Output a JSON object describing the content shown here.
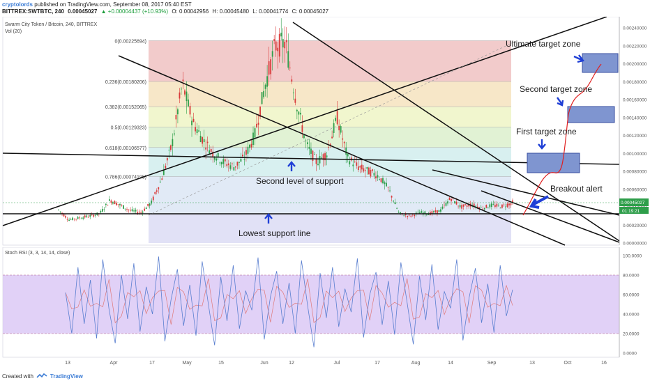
{
  "header": {
    "user": "cryptolords",
    "published": "published on TradingView.com, September 08, 2017 05:40 EST",
    "symbol": "BITTREX:SWTBTC, 240",
    "last": "0.00045027",
    "change": "▲ +0.00004437 (+10.93%)",
    "open": "O: 0.00042956",
    "high": "H: 0.00045480",
    "low": "L: 0.00041774",
    "close": "C: 0.00045027"
  },
  "pane_title": "Swarm City Token / Bitcoin, 240, BITTREX",
  "volume_label": "Vol (20)",
  "rsi_title": "Stoch RSI (3, 3, 14, 14, close)",
  "price_axis": [
    "0.00240000",
    "0.00220000",
    "0.00200000",
    "0.00180000",
    "0.00160000",
    "0.00140000",
    "0.00120000",
    "0.00100000",
    "0.00080000",
    "0.00060000",
    "0.00040000",
    "0.00020000",
    "0.00000000"
  ],
  "last_price_tag": "0.00045027",
  "countdown_tag": "01:19:21",
  "rsi_axis": [
    "100.0000",
    "80.0000",
    "60.0000",
    "40.0000",
    "20.0000",
    "0.0000"
  ],
  "time_axis": [
    "13",
    "Apr",
    "17",
    "May",
    "15",
    "Jun",
    "12",
    "Jul",
    "17",
    "Aug",
    "14",
    "Sep",
    "13",
    "Oct",
    "16"
  ],
  "colors": {
    "fib0": "#e8a0a0",
    "fib1": "#f0d49a",
    "fib2": "#e6eea6",
    "fib3": "#c8e8b0",
    "fib4": "#b8e4e4",
    "fib5": "#c8d8ee",
    "fib6": "#c8c8ee",
    "candle_up": "#2e9e4a",
    "candle_down": "#d93a3a",
    "annotation_arrow": "#1f3fd6",
    "target_box": "#7f95d0",
    "breakout_path": "#e02020",
    "rsi_band": "#d9c6f5"
  },
  "icons": {
    "tradingview_logo": "tv-logo-icon"
  },
  "footer": {
    "created_with": "Created with",
    "brand": "TradingView"
  },
  "annotations": {
    "ultimate": "Ultimate target zone",
    "second_target": "Second target zone",
    "first_target": "First target zone",
    "breakout": "Breakout alert",
    "second_support": "Second level of support",
    "lowest_support": "Lowest support line"
  },
  "chart_data": {
    "type": "candlestick",
    "title": "Swarm City Token / Bitcoin, 240, BITTREX",
    "ylim": [
      0,
      0.0025
    ],
    "fib_levels": [
      {
        "ratio": "0",
        "label": "0(0.00225694)",
        "value": 0.00225694
      },
      {
        "ratio": "0.236",
        "label": "0.236(0.00180206)",
        "value": 0.00180206
      },
      {
        "ratio": "0.382",
        "label": "0.382(0.00152065)",
        "value": 0.00152065
      },
      {
        "ratio": "0.5",
        "label": "0.5(0.00129323)",
        "value": 0.00129323
      },
      {
        "ratio": "0.618",
        "label": "0.618(0.00106577)",
        "value": 0.00106577
      },
      {
        "ratio": "0.786",
        "label": "0.786(0.00074195)",
        "value": 0.00074195
      },
      {
        "ratio": "1",
        "label": "",
        "value": 0.00032
      }
    ],
    "price_path": [
      0.00037,
      0.00026,
      0.00028,
      0.0003,
      0.00033,
      0.00048,
      0.00042,
      0.00036,
      0.00034,
      0.00045,
      0.00072,
      0.0011,
      0.00178,
      0.00135,
      0.00115,
      0.001,
      0.0009,
      0.00085,
      0.00095,
      0.0012,
      0.00175,
      0.0022,
      0.00223,
      0.0016,
      0.0011,
      0.0009,
      0.001,
      0.0014,
      0.00095,
      0.00085,
      0.0008,
      0.00075,
      0.0006,
      0.00033,
      0.0003,
      0.00034,
      0.00033,
      0.00036,
      0.0005,
      0.0004,
      0.00043,
      0.00039,
      0.00042,
      0.00041,
      0.00045
    ],
    "current_price": 0.00045027,
    "stoch_rsi": [
      62,
      20,
      88,
      30,
      75,
      15,
      96,
      45,
      10,
      80,
      35,
      92,
      22,
      68,
      40,
      99,
      12,
      55,
      86,
      28,
      70,
      18,
      94,
      50,
      8,
      78,
      33,
      90,
      25,
      64,
      44,
      98,
      14,
      58,
      84,
      30,
      72,
      20,
      95,
      48,
      6,
      82,
      36,
      88,
      27,
      66,
      42,
      97,
      16,
      60,
      83,
      29,
      74,
      19,
      93,
      52,
      9,
      79,
      34,
      91,
      24,
      63,
      46,
      96,
      13,
      57,
      87,
      31,
      71,
      21,
      90,
      38,
      65
    ]
  }
}
